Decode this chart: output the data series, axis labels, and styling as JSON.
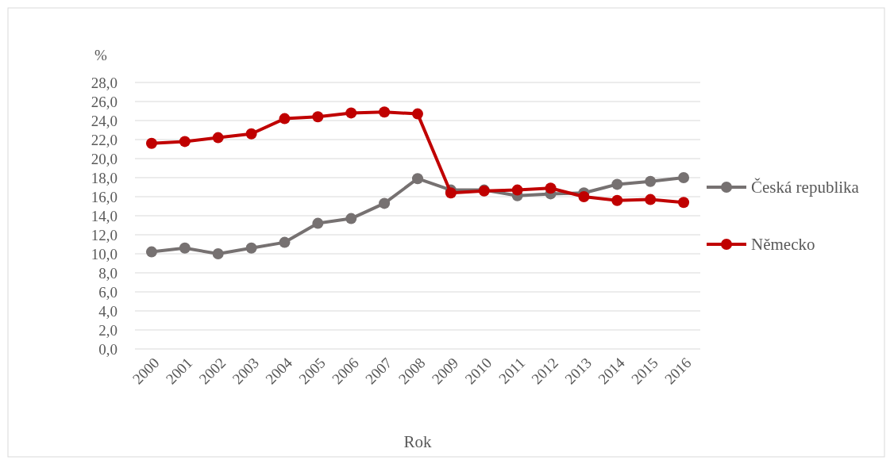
{
  "chart_data": {
    "type": "line",
    "xlabel": "Rok",
    "ylabel": "%",
    "categories": [
      "2000",
      "2001",
      "2002",
      "2003",
      "2004",
      "2005",
      "2006",
      "2007",
      "2008",
      "2009",
      "2010",
      "2011",
      "2012",
      "2013",
      "2014",
      "2015",
      "2016"
    ],
    "series": [
      {
        "name": "Česká republika",
        "color": "#767171",
        "values": [
          10.2,
          10.6,
          10.0,
          10.6,
          11.2,
          13.2,
          13.7,
          15.3,
          17.9,
          16.7,
          16.7,
          16.1,
          16.3,
          16.4,
          17.3,
          17.6,
          18.0
        ]
      },
      {
        "name": "Německo",
        "color": "#c00000",
        "values": [
          21.6,
          21.8,
          22.2,
          22.6,
          24.2,
          24.4,
          24.8,
          24.9,
          24.7,
          16.4,
          16.6,
          16.7,
          16.9,
          16.0,
          15.6,
          15.7,
          15.4
        ]
      }
    ],
    "ylim": [
      0,
      28
    ],
    "yticks": [
      {
        "value": 0,
        "label": "0,0"
      },
      {
        "value": 2,
        "label": "2,0"
      },
      {
        "value": 4,
        "label": "4,0"
      },
      {
        "value": 6,
        "label": "6,0"
      },
      {
        "value": 8,
        "label": "8,0"
      },
      {
        "value": 10,
        "label": "10,0"
      },
      {
        "value": 12,
        "label": "12,0"
      },
      {
        "value": 14,
        "label": "14,0"
      },
      {
        "value": 16,
        "label": "16,0"
      },
      {
        "value": 18,
        "label": "18,0"
      },
      {
        "value": 20,
        "label": "20,0"
      },
      {
        "value": 22,
        "label": "22,0"
      },
      {
        "value": 24,
        "label": "24,0"
      },
      {
        "value": 26,
        "label": "26,0"
      },
      {
        "value": 28,
        "label": "28,0"
      }
    ],
    "grid": "y",
    "legend": "right",
    "marker": "circle",
    "line_style": "solid"
  }
}
